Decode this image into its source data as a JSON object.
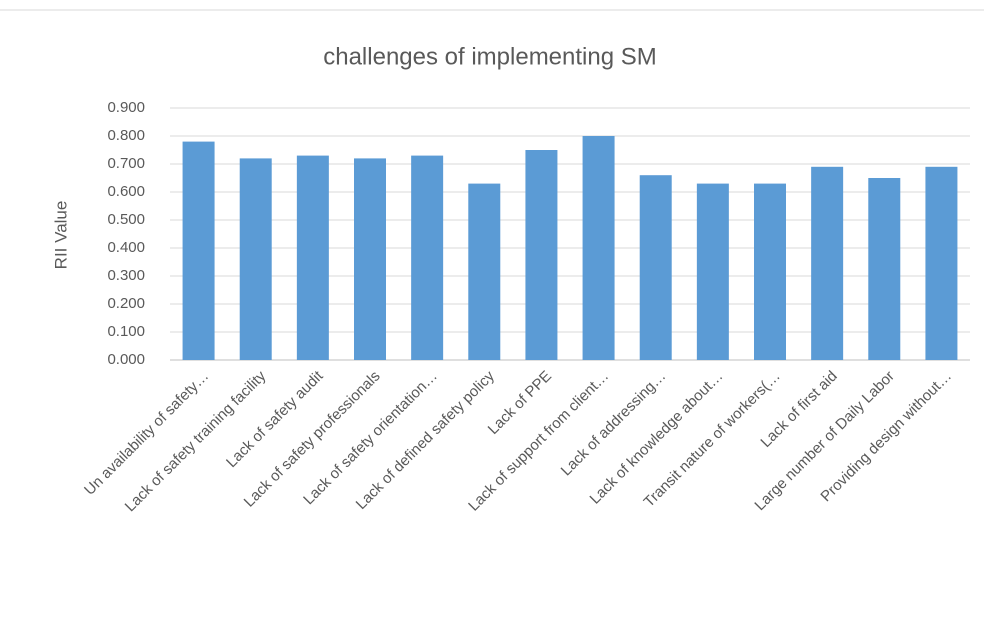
{
  "chart_data": {
    "type": "bar",
    "title": "challenges of implementing SM",
    "y_label": "RII Value",
    "categories": [
      "Un availability of safety…",
      "Lack of safety training facility",
      "Lack of safety audit",
      "Lack of safety professionals",
      "Lack of safety orientation…",
      "Lack of defined safety policy",
      "Lack of PPE",
      "Lack of support from client…",
      "Lack of addressing…",
      "Lack of knowledge about…",
      "Transit nature of workers(…",
      "Lack of first aid",
      "Large number of Daily Labor",
      "Providing design without…"
    ],
    "values": [
      0.78,
      0.72,
      0.73,
      0.72,
      0.73,
      0.63,
      0.75,
      0.8,
      0.66,
      0.63,
      0.63,
      0.69,
      0.65,
      0.69
    ],
    "color": "#5b9bd5",
    "ylim": [
      0,
      0.9
    ],
    "yticks": [
      {
        "value": 0,
        "label": "0.000"
      },
      {
        "value": 0.1,
        "label": "0.100"
      },
      {
        "value": 0.2,
        "label": "0.200"
      },
      {
        "value": 0.3,
        "label": "0.300"
      },
      {
        "value": 0.4,
        "label": "0.400"
      },
      {
        "value": 0.5,
        "label": "0.500"
      },
      {
        "value": 0.6,
        "label": "0.600"
      },
      {
        "value": 0.7,
        "label": "0.700"
      },
      {
        "value": 0.8,
        "label": "0.800"
      },
      {
        "value": 0.9,
        "label": "0.900"
      }
    ],
    "grid": true
  }
}
